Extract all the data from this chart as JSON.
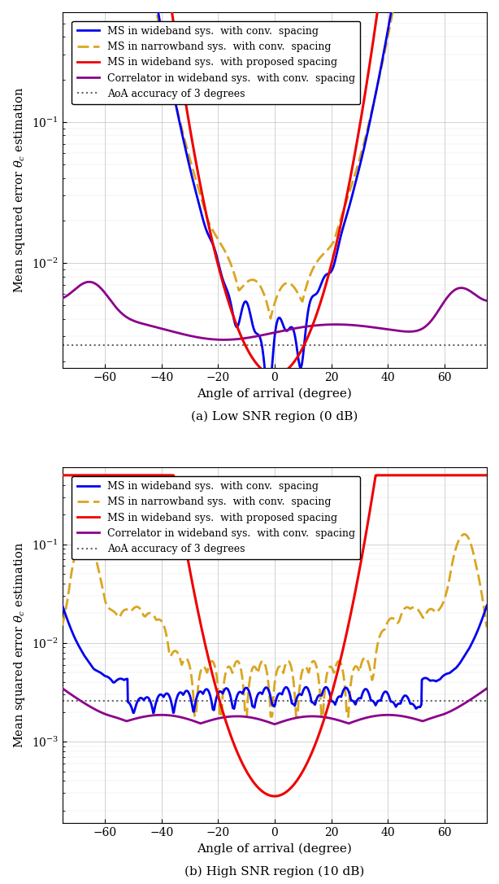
{
  "colors": {
    "blue": "#0000EE",
    "orange_dashed": "#DAA520",
    "red": "#EE0000",
    "purple": "#8B008B",
    "gray_dotted": "#666666"
  },
  "legend_labels": [
    "MS in wideband sys.  with conv.  spacing",
    "MS in narrowband sys.  with conv.  spacing",
    "MS in wideband sys.  with proposed spacing",
    "Correlator in wideband sys.  with conv.  spacing",
    "AoA accuracy of 3 degrees"
  ],
  "xlabel": "Angle of arrival (degree)",
  "ylabel": "Mean squared error $\\theta_c$ estimation",
  "caption_a": "(a) Low SNR region (0 dB)",
  "caption_b": "(b) High SNR region (10 dB)",
  "xlim": [
    -75,
    75
  ],
  "xticks": [
    -60,
    -40,
    -20,
    0,
    20,
    40,
    60
  ],
  "aoa_ref": 0.0026,
  "plot_a": {
    "ylim_low": 0.0018,
    "ylim_high": 0.6,
    "yticks": [
      0.01,
      0.1
    ]
  },
  "plot_b": {
    "ylim_low": 0.00015,
    "ylim_high": 0.6,
    "yticks": [
      0.001,
      0.01,
      0.1
    ]
  }
}
